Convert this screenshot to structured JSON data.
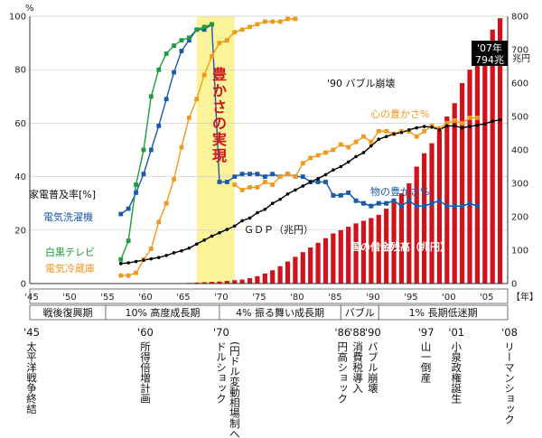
{
  "chart_data": {
    "type": "line",
    "left_axis": {
      "unit": "%",
      "ylim": [
        0,
        100
      ],
      "ticks": [
        0,
        20,
        40,
        60,
        80,
        100
      ]
    },
    "right_axis": {
      "unit": "兆円",
      "ylim": [
        0,
        800
      ],
      "ticks": [
        0,
        100,
        200,
        300,
        400,
        500,
        600,
        700,
        800
      ]
    },
    "x_axis": {
      "xlim": [
        1945,
        2008
      ],
      "tick_labels": [
        "'45",
        "'50",
        "'55",
        "'60",
        "'65",
        "'70",
        "'75",
        "'80",
        "'85",
        "'90",
        "'95",
        "'00",
        "'05"
      ],
      "tick_years": [
        1945,
        1950,
        1955,
        1960,
        1965,
        1970,
        1975,
        1980,
        1985,
        1990,
        1995,
        2000,
        2005
      ],
      "unit_label": "【年】"
    },
    "highlight": {
      "label": "豊かさの実現",
      "x_range": [
        1967,
        1972
      ]
    },
    "series": [
      {
        "name": "電気洗濯機",
        "axis": "left",
        "color": "#1a5aa8",
        "marker": "square",
        "x": [
          1957,
          1958,
          1959,
          1960,
          1961,
          1962,
          1963,
          1964,
          1965,
          1966,
          1967,
          1968,
          1969,
          1970,
          1971,
          1972,
          1973,
          1974,
          1975,
          1976,
          1977,
          1978,
          1979,
          1980,
          1981,
          1982,
          1983,
          1984,
          1985,
          1986,
          1987,
          1988,
          1989,
          1990,
          1991,
          1992,
          1993,
          1994,
          1995,
          1996,
          1997,
          1998,
          1999,
          2000,
          2001,
          2002,
          2003,
          2004
        ],
        "y": [
          26,
          28,
          34,
          41,
          50,
          59,
          69,
          79,
          87,
          91,
          95,
          95,
          97,
          38,
          38,
          40,
          41,
          41,
          41,
          40,
          41,
          40,
          41,
          40,
          40,
          38,
          38,
          38,
          33,
          33,
          34,
          31,
          30,
          29,
          30,
          30,
          31,
          29,
          31,
          29,
          29,
          30,
          31,
          29,
          29,
          29,
          30,
          29
        ]
      },
      {
        "name": "白黒テレビ",
        "axis": "left",
        "color": "#1f9a3c",
        "marker": "square",
        "x": [
          1957,
          1958,
          1959,
          1960,
          1961,
          1962,
          1963,
          1964,
          1965,
          1966,
          1967,
          1968,
          1969
        ],
        "y": [
          9,
          16,
          37,
          50,
          70,
          80,
          86,
          89,
          91,
          92,
          95,
          96,
          97
        ]
      },
      {
        "name": "電気冷蔵庫",
        "axis": "left",
        "color": "#ee9a1c",
        "marker": "square",
        "x": [
          1957,
          1958,
          1959,
          1960,
          1961,
          1962,
          1963,
          1964,
          1965,
          1966,
          1967,
          1968,
          1969,
          1970,
          1971,
          1972,
          1973,
          1974,
          1975,
          1976,
          1977,
          1978,
          1979,
          1980
        ],
        "y": [
          3,
          3,
          4,
          9,
          13,
          23,
          30,
          39,
          51,
          62,
          69,
          78,
          85,
          90,
          91,
          94,
          95,
          96,
          97,
          98,
          98,
          98,
          99,
          99
        ]
      },
      {
        "name": "心の豊かさ%",
        "axis": "left",
        "color": "#ee9a1c",
        "marker": "square",
        "x": [
          1972,
          1973,
          1974,
          1975,
          1976,
          1977,
          1978,
          1979,
          1980,
          1981,
          1982,
          1983,
          1984,
          1985,
          1986,
          1987,
          1988,
          1989,
          1990,
          1991,
          1992,
          1993,
          1994,
          1995,
          1996,
          1997,
          1998,
          1999,
          2000,
          2001,
          2002,
          2003,
          2004
        ],
        "y": [
          37,
          35,
          36,
          36,
          38,
          37,
          40,
          41,
          40,
          45,
          47,
          48,
          49,
          50,
          52,
          51,
          53,
          55,
          53,
          57,
          57,
          56,
          57,
          57,
          55,
          57,
          59,
          58,
          60,
          61,
          60,
          62,
          62
        ]
      },
      {
        "name": "物の豊かさ%",
        "axis": "left",
        "color": "#1a5aa8",
        "marker": "square",
        "x": [
          1985,
          1986,
          1987,
          1988,
          1989,
          1990,
          1991,
          1992,
          1993,
          1994,
          1995,
          1996,
          1997,
          1998,
          1999,
          2000,
          2001,
          2002,
          2003,
          2004
        ],
        "y": [
          33,
          33,
          34,
          31,
          30,
          29,
          30,
          30,
          31,
          29,
          31,
          29,
          29,
          30,
          31,
          29,
          29,
          29,
          30,
          29
        ]
      },
      {
        "name": "GDP（兆円）",
        "axis": "right",
        "color": "#000000",
        "marker": "dot",
        "x": [
          1957,
          1958,
          1959,
          1960,
          1961,
          1962,
          1963,
          1964,
          1965,
          1966,
          1967,
          1968,
          1969,
          1970,
          1971,
          1972,
          1973,
          1974,
          1975,
          1976,
          1977,
          1978,
          1979,
          1980,
          1981,
          1982,
          1983,
          1984,
          1985,
          1986,
          1987,
          1988,
          1989,
          1990,
          1991,
          1992,
          1993,
          1994,
          1995,
          1996,
          1997,
          1998,
          1999,
          2000,
          2001,
          2002,
          2003,
          2004,
          2005,
          2006,
          2007
        ],
        "y": [
          60,
          62,
          66,
          70,
          74,
          78,
          84,
          92,
          98,
          106,
          118,
          130,
          142,
          152,
          162,
          172,
          188,
          196,
          212,
          222,
          240,
          252,
          268,
          280,
          292,
          304,
          314,
          326,
          340,
          350,
          364,
          380,
          392,
          412,
          432,
          440,
          448,
          452,
          460,
          466,
          470,
          468,
          460,
          472,
          472,
          466,
          470,
          474,
          478,
          486,
          490
        ]
      }
    ],
    "bars": {
      "name": "国の借金残高（兆円）",
      "axis": "right",
      "color": "#d0121b",
      "x": [
        1966,
        1967,
        1968,
        1969,
        1970,
        1971,
        1972,
        1973,
        1974,
        1975,
        1976,
        1977,
        1978,
        1979,
        1980,
        1981,
        1982,
        1983,
        1984,
        1985,
        1986,
        1987,
        1988,
        1989,
        1990,
        1991,
        1992,
        1993,
        1994,
        1995,
        1996,
        1997,
        1998,
        1999,
        2000,
        2001,
        2002,
        2003,
        2004,
        2005,
        2006,
        2007
      ],
      "y": [
        2,
        3,
        4,
        5,
        6,
        8,
        10,
        12,
        16,
        22,
        30,
        40,
        52,
        66,
        80,
        94,
        108,
        122,
        136,
        150,
        160,
        170,
        180,
        188,
        196,
        206,
        224,
        246,
        270,
        300,
        350,
        390,
        420,
        460,
        500,
        540,
        600,
        640,
        690,
        720,
        760,
        794
      ]
    },
    "annotations": {
      "left_unit": "%",
      "right_unit": "兆円",
      "bubble": [
        "'07年",
        "794兆"
      ],
      "bubble_lines": [
        "'07年",
        "794兆"
      ],
      "bubble_year": 2007,
      "bubble_value": 794,
      "bubble_text": "'07年 794兆",
      "bubble_caption": "'07年794兆",
      "appliance_rate_label": "家電普及率[%]",
      "bubble_era_label": "'90 バブル崩壊",
      "gdp_label": "ＧＤＰ（兆円）",
      "debt_label": "国の借金残高（兆円）",
      "washing_machine_label": "電気洗濯機",
      "bw_tv_label": "白黒テレビ",
      "fridge_label": "電気冷蔵庫",
      "kokoro_label": "心の豊かさ%",
      "mono_label": "物の豊かさ%"
    },
    "eras": [
      {
        "label": "戦後復興期",
        "start": 1945,
        "end": 1955
      },
      {
        "label": "10% 高度成長期",
        "start": 1955,
        "end": 1970
      },
      {
        "label": "4% 振る舞い成長期",
        "start": 1970,
        "end": 1986
      },
      {
        "label": "バブル",
        "start": 1986,
        "end": 1991
      },
      {
        "label": "1% 長期低迷期",
        "start": 1991,
        "end": 2008
      }
    ],
    "events": [
      {
        "year_label": "'45",
        "text": "太平洋戦争終結",
        "year": 1945
      },
      {
        "year_label": "'60",
        "text": "所得倍増計画",
        "year": 1960
      },
      {
        "year_label": "'70",
        "text": "ドルショック",
        "sub": "(円ドル変動相場制へ)",
        "year": 1970
      },
      {
        "year_label": "'86",
        "text": "円高ショック",
        "year": 1986
      },
      {
        "year_label": "'88",
        "text": "消費税導入",
        "year": 1988
      },
      {
        "year_label": "'90",
        "text": "バブル崩壊",
        "year": 1990
      },
      {
        "year_label": "'97",
        "text": "山一倒産",
        "year": 1997
      },
      {
        "year_label": "'01",
        "text": "小泉政権誕生",
        "year": 2001
      },
      {
        "year_label": "'08",
        "text": "リーマンショック",
        "year": 2008
      }
    ]
  }
}
